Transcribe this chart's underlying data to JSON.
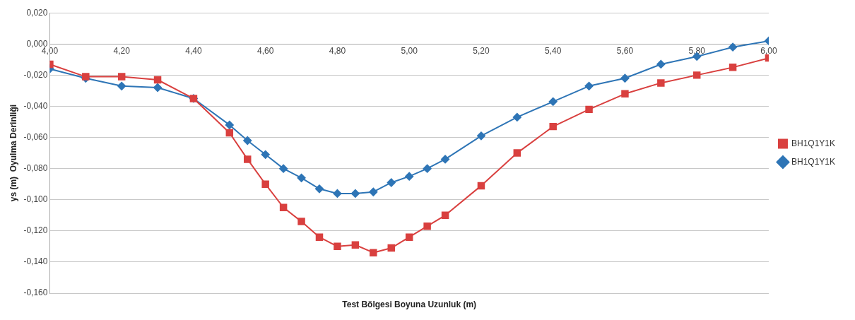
{
  "chart_data": {
    "type": "line",
    "xlabel": "Test Bölgesi Boyuna Uzunluk (m)",
    "ylabel": "ys (m)  Oyulma Derinliği",
    "x": [
      4.0,
      4.1,
      4.2,
      4.3,
      4.4,
      4.5,
      4.55,
      4.6,
      4.65,
      4.7,
      4.75,
      4.8,
      4.85,
      4.9,
      4.95,
      5.0,
      5.05,
      5.1,
      5.2,
      5.3,
      5.4,
      5.5,
      5.6,
      5.7,
      5.8,
      5.9,
      6.0
    ],
    "series": [
      {
        "name": "BH1Q1Y1K",
        "color": "#2e75b6",
        "marker": "diamond",
        "values": [
          -0.016,
          -0.022,
          -0.027,
          -0.028,
          -0.035,
          -0.052,
          -0.062,
          -0.071,
          -0.08,
          -0.086,
          -0.093,
          -0.096,
          -0.096,
          -0.095,
          -0.089,
          -0.085,
          -0.08,
          -0.074,
          -0.059,
          -0.047,
          -0.037,
          -0.027,
          -0.022,
          -0.013,
          -0.008,
          -0.002,
          0.002
        ]
      },
      {
        "name": "BH1Q1Y1K",
        "color": "#d9403f",
        "marker": "square",
        "values": [
          -0.013,
          -0.021,
          -0.021,
          -0.023,
          -0.035,
          -0.057,
          -0.074,
          -0.09,
          -0.105,
          -0.114,
          -0.124,
          -0.13,
          -0.129,
          -0.134,
          -0.131,
          -0.124,
          -0.117,
          -0.11,
          -0.091,
          -0.07,
          -0.053,
          -0.042,
          -0.032,
          -0.025,
          -0.02,
          -0.015,
          -0.009
        ]
      }
    ],
    "xlim": [
      4.0,
      6.0
    ],
    "xticks": [
      {
        "value": 4.0,
        "label": "4,00"
      },
      {
        "value": 4.2,
        "label": "4,20"
      },
      {
        "value": 4.4,
        "label": "4,40"
      },
      {
        "value": 4.6,
        "label": "4,60"
      },
      {
        "value": 4.8,
        "label": "4,80"
      },
      {
        "value": 5.0,
        "label": "5,00"
      },
      {
        "value": 5.2,
        "label": "5,20"
      },
      {
        "value": 5.4,
        "label": "5,40"
      },
      {
        "value": 5.6,
        "label": "5,60"
      },
      {
        "value": 5.8,
        "label": "5,80"
      },
      {
        "value": 6.0,
        "label": "6,00"
      }
    ],
    "ylim": [
      -0.16,
      0.02
    ],
    "yticks": [
      {
        "value": 0.02,
        "label": "0,020"
      },
      {
        "value": 0,
        "label": "0,000"
      },
      {
        "value": -0.02,
        "label": "-0,020"
      },
      {
        "value": -0.04,
        "label": "-0,040"
      },
      {
        "value": -0.06,
        "label": "-0,060"
      },
      {
        "value": -0.08,
        "label": "-0,080"
      },
      {
        "value": -0.1,
        "label": "-0,100"
      },
      {
        "value": -0.12,
        "label": "-0,120"
      },
      {
        "value": -0.14,
        "label": "-0,140"
      },
      {
        "value": -0.16,
        "label": "-0,160"
      }
    ],
    "grid": "y",
    "legend": "right",
    "line_style": "solid"
  }
}
